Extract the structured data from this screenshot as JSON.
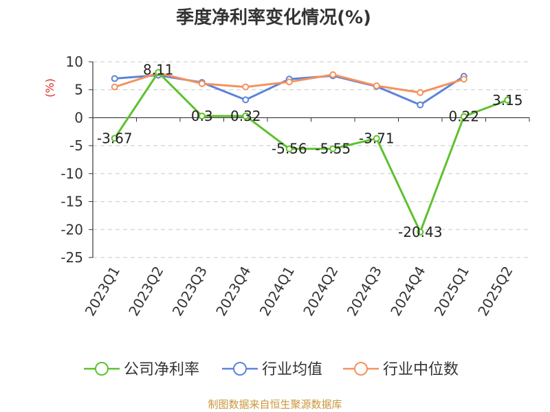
{
  "title": "季度净利率变化情况(%)",
  "source": "制图数据来自恒生聚源数据库",
  "colors": {
    "company": "#5cc12c",
    "industry_avg": "#5b83d9",
    "industry_median": "#f5915c",
    "axis": "#333333",
    "grid": "#c8c8c8",
    "ylabel": "#e0281e",
    "source": "#c8963c"
  },
  "chart_data": {
    "type": "line",
    "title": "季度净利率变化情况(%)",
    "ylabel": "(%)",
    "xlabel": "",
    "ylim": [
      -25,
      10
    ],
    "yticks": [
      10,
      5,
      0,
      -5,
      -10,
      -15,
      -20,
      -25
    ],
    "grid": "horizontal-dashed",
    "legend_position": "bottom",
    "categories": [
      "2023Q1",
      "2023Q2",
      "2023Q3",
      "2023Q4",
      "2024Q1",
      "2024Q2",
      "2024Q3",
      "2024Q4",
      "2025Q1",
      "2025Q2"
    ],
    "series": [
      {
        "name": "公司净利率",
        "key": "company",
        "values": [
          -3.67,
          8.11,
          0.3,
          0.32,
          -5.56,
          -5.55,
          -3.71,
          -20.43,
          0.22,
          3.15
        ],
        "labels": [
          "-3.67",
          "8.11",
          "0.3",
          "0.32",
          "-5.56",
          "-5.55",
          "-3.71",
          "-20.43",
          "0.22",
          "3.15"
        ]
      },
      {
        "name": "行业均值",
        "key": "industry_avg",
        "values": [
          7.0,
          7.6,
          6.3,
          3.2,
          6.9,
          7.5,
          5.6,
          2.3,
          7.4,
          null
        ]
      },
      {
        "name": "行业中位数",
        "key": "industry_median",
        "values": [
          5.5,
          8.0,
          6.1,
          5.5,
          6.4,
          7.7,
          5.7,
          4.5,
          6.9,
          null
        ]
      }
    ]
  }
}
